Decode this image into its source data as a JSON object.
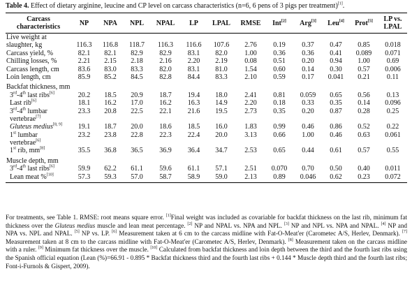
{
  "title": {
    "label": "Table 4.",
    "text": " Effect of dietary arginine, leucine and CP level on carcass characteristics (n=6, 6 pens of 3 pigs per treatment)",
    "sup": "[1]",
    "end": "."
  },
  "columns": [
    {
      "label": "Carcass characteristics",
      "sup": ""
    },
    {
      "label": "NP",
      "sup": ""
    },
    {
      "label": "NPA",
      "sup": ""
    },
    {
      "label": "NPL",
      "sup": ""
    },
    {
      "label": "NPAL",
      "sup": ""
    },
    {
      "label": "LP",
      "sup": ""
    },
    {
      "label": "LPAL",
      "sup": ""
    },
    {
      "label": "RMSE",
      "sup": ""
    },
    {
      "label": "Int",
      "sup": "[2]"
    },
    {
      "label": "Arg",
      "sup": "[3]"
    },
    {
      "label": "Leu",
      "sup": "[4]"
    },
    {
      "label": "Prot",
      "sup": "[5]"
    },
    {
      "label": "LP vs. LPAL",
      "sup": ""
    }
  ],
  "rows": {
    "r0": {
      "name": "Live weight at",
      "values": [
        "",
        "",
        "",
        "",
        "",
        "",
        "",
        "",
        "",
        "",
        "",
        ""
      ]
    },
    "r0b": {
      "name": "slaughter, kg",
      "values": [
        "116.3",
        "116.8",
        "118.7",
        "116.3",
        "116.6",
        "107.6",
        "2.76",
        "0.19",
        "0.37",
        "0.47",
        "0.85",
        "0.018"
      ]
    },
    "r1": {
      "name": "Carcass yield, %",
      "values": [
        "82.1",
        "82.1",
        "82.9",
        "82.9",
        "83.1",
        "82.0",
        "1.00",
        "0.36",
        "0.36",
        "0.41",
        "0.089",
        "0.071"
      ]
    },
    "r2": {
      "name": "Chilling losses, %",
      "values": [
        "2.21",
        "2.15",
        "2.18",
        "2.16",
        "2.20",
        "2.19",
        "0.08",
        "0.51",
        "0.20",
        "0.94",
        "1.00",
        "0.69"
      ]
    },
    "r3": {
      "name": "Carcass length, cm",
      "values": [
        "83.6",
        "83.0",
        "83.3",
        "82.0",
        "83.1",
        "81.0",
        "1.54",
        "0.60",
        "0.14",
        "0.30",
        "0.57",
        "0.006"
      ]
    },
    "r4": {
      "name": "Loin length, cm",
      "values": [
        "85.9",
        "85.2",
        "84.5",
        "82.8",
        "84.4",
        "83.3",
        "2.10",
        "0.59",
        "0.17",
        "0.041",
        "0.21",
        "0.11"
      ]
    },
    "r5": {
      "name": "Backfat thickness, mm",
      "values": [
        "",
        "",
        "",
        "",
        "",
        "",
        "",
        "",
        "",
        "",
        "",
        ""
      ]
    },
    "r6": {
      "name": "3rd-4th last ribs",
      "sup": "[6]",
      "values": [
        "20.2",
        "18.5",
        "20.9",
        "18.7",
        "19.4",
        "18.0",
        "2.41",
        "0.81",
        "0.059",
        "0.65",
        "0.56",
        "0.13"
      ]
    },
    "r7": {
      "name": "Last rib",
      "sup": "[6]",
      "values": [
        "18.1",
        "16.2",
        "17.0",
        "16.2",
        "16.3",
        "14.9",
        "2.20",
        "0.18",
        "0.33",
        "0.35",
        "0.14",
        "0.096"
      ]
    },
    "r8": {
      "name": "3rd-4th lumbar",
      "sup": "",
      "values": [
        "23.3",
        "20.8",
        "22.5",
        "22.1",
        "21.6",
        "19.5",
        "2.73",
        "0.35",
        "0.20",
        "0.87",
        "0.28",
        "0.25"
      ]
    },
    "r8b": {
      "name": "vertebrae",
      "sup": "[7]",
      "values": [
        "",
        "",
        "",
        "",
        "",
        "",
        "",
        "",
        "",
        "",
        "",
        ""
      ]
    },
    "r9": {
      "name": "Gluteus medius",
      "sup": "[8, 9]",
      "values": [
        "19.1",
        "18.7",
        "20.0",
        "18.6",
        "18.5",
        "16.0",
        "1.83",
        "0.99",
        "0.46",
        "0.86",
        "0.52",
        "0.22"
      ]
    },
    "r10": {
      "name": "1st lumbar",
      "sup": "",
      "values": [
        "23.2",
        "23.8",
        "22.8",
        "22.3",
        "22.4",
        "20.0",
        "3.13",
        "0.66",
        "1.00",
        "0.46",
        "0.63",
        "0.061"
      ]
    },
    "r10b": {
      "name": "vertebrae",
      "sup": "[6]",
      "values": [
        "",
        "",
        "",
        "",
        "",
        "",
        "",
        "",
        "",
        "",
        "",
        ""
      ]
    },
    "r11": {
      "name": "1st rib, mm",
      "sup": "[8]",
      "values": [
        "35.5",
        "36.8",
        "36.5",
        "36.9",
        "36.4",
        "34.7",
        "2.53",
        "0.65",
        "0.44",
        "0.61",
        "0.57",
        "0.55"
      ]
    },
    "r12": {
      "name": "Muscle depth, mm",
      "values": [
        "",
        "",
        "",
        "",
        "",
        "",
        "",
        "",
        "",
        "",
        "",
        ""
      ]
    },
    "r13": {
      "name": "3rd-4th last ribs",
      "sup": "[6]",
      "values": [
        "59.9",
        "62.2",
        "61.1",
        "59.6",
        "61.1",
        "57.1",
        "2.51",
        "0.070",
        "0.70",
        "0.50",
        "0.40",
        "0.011"
      ]
    },
    "r14": {
      "name": "Lean meat %",
      "sup": "[10]",
      "values": [
        "57.3",
        "59.3",
        "57.0",
        "58.7",
        "58.9",
        "59.0",
        "2.13",
        "0.89",
        "0.046",
        "0.62",
        "0.23",
        "0.072"
      ]
    }
  },
  "footnote": {
    "p0": "For treatments, see Table 1. RMSE: root means square error. ",
    "p1": "[1]",
    "p2": "Final weight was included as covariable for backfat thickness on the last rib, minimum fat thickness over the ",
    "p3": "Gluteus medius",
    "p4": " muscle and lean meat percentage. ",
    "p5": "[2]",
    "p6": " NP and NPAL vs. NPA and NPL. ",
    "p7": "[3]",
    "p8": " NP and NPL vs. NPA and NPAL. ",
    "p9": "[4]",
    "p10": " NP and NPA vs. NPL and NPAL. ",
    "p11": "[5]",
    "p12": " NP vs. LP. ",
    "p13": "[6]",
    "p14": " Measurement taken at 6 cm to the carcass midline with Fat-O-Meat'er (Carometec A/S, Herlev, Denmark). ",
    "p15": "[7]",
    "p16": " Measurement taken at 8 cm to the carcass midline with Fat-O-Meat'er (Carometec A/S, Herlev, Denmark). ",
    "p17": "[8]",
    "p18": " Measurement taken on the carcass midline with a ruler. ",
    "p19": "[9]",
    "p20": " Minimum fat thickness over the muscle. ",
    "p21": "[10]",
    "p22": " Calculated from backfat thickness and loin depth between the third and the fourth last ribs using the Spanish official equation (Lean (%)=66.91 - 0.895 * Backfat thickness third and the fourth last ribs + 0.144 * Muscle depth third and the fourth last ribs; Font-i-Furnols & Gispert, 2009)."
  }
}
